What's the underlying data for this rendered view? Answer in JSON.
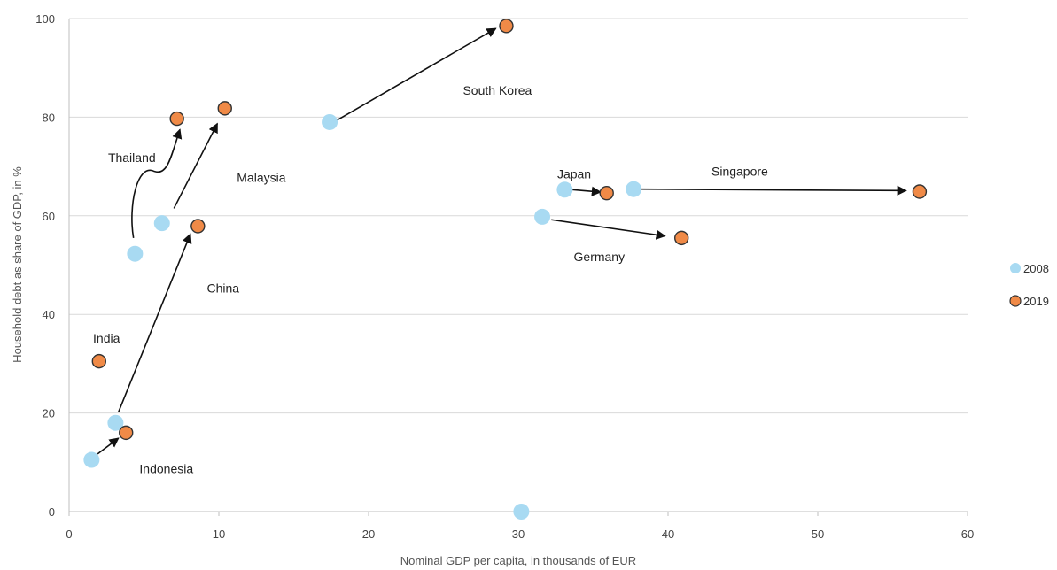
{
  "chart_data": {
    "type": "scatter",
    "xlabel": "Nominal GDP per capita, in thousands of EUR",
    "ylabel": "Household debt as share of GDP, in %",
    "xlim": [
      0,
      60
    ],
    "ylim": [
      0,
      100
    ],
    "x_ticks": [
      0,
      10,
      20,
      30,
      40,
      50,
      60
    ],
    "y_ticks": [
      0,
      20,
      40,
      60,
      80,
      100
    ],
    "grid": "horizontal",
    "legend_position": "right",
    "series": [
      {
        "name": "2008",
        "color": "#a8daf2",
        "points": [
          {
            "x": 1.5,
            "y": 10.5
          },
          {
            "x": 3.1,
            "y": 18
          },
          {
            "x": 4.4,
            "y": 52.3
          },
          {
            "x": 6.2,
            "y": 58.5
          },
          {
            "x": 17.4,
            "y": 79
          },
          {
            "x": 30.2,
            "y": 0
          },
          {
            "x": 31.6,
            "y": 59.8
          },
          {
            "x": 33.1,
            "y": 65.3
          },
          {
            "x": 37.7,
            "y": 65.4
          }
        ]
      },
      {
        "name": "2019",
        "color": "#f08a47",
        "points": [
          {
            "x": 2.0,
            "y": 30.5
          },
          {
            "x": 3.8,
            "y": 16
          },
          {
            "x": 7.2,
            "y": 79.7
          },
          {
            "x": 8.6,
            "y": 57.9
          },
          {
            "x": 10.4,
            "y": 81.8
          },
          {
            "x": 29.2,
            "y": 98.5
          },
          {
            "x": 35.9,
            "y": 64.6
          },
          {
            "x": 40.9,
            "y": 55.5
          },
          {
            "x": 56.8,
            "y": 64.9
          }
        ]
      }
    ],
    "annotations": [
      {
        "text": "South Korea",
        "x": 26.3,
        "y": 85.5
      },
      {
        "text": "Thailand",
        "x": 2.6,
        "y": 71.8
      },
      {
        "text": "Malaysia",
        "x": 11.2,
        "y": 67.8
      },
      {
        "text": "Japan",
        "x": 32.6,
        "y": 68.5
      },
      {
        "text": "Singapore",
        "x": 42.9,
        "y": 69.0
      },
      {
        "text": "Germany",
        "x": 33.7,
        "y": 51.7
      },
      {
        "text": "China",
        "x": 9.2,
        "y": 45.3
      },
      {
        "text": "India",
        "x": 1.6,
        "y": 35.2
      },
      {
        "text": "Indonesia",
        "x": 4.7,
        "y": 8.7
      }
    ],
    "arrows": [
      {
        "from": [
          17.9,
          79.4
        ],
        "to": [
          28.5,
          98.0
        ]
      },
      {
        "from": [
          4.3,
          55.5
        ],
        "curve_via": [
          5.7,
          69.0
        ],
        "to": [
          7.4,
          77.5
        ]
      },
      {
        "from": [
          7.0,
          61.5
        ],
        "to": [
          9.9,
          78.7
        ]
      },
      {
        "from": [
          3.3,
          20.2
        ],
        "to": [
          8.1,
          56.3
        ]
      },
      {
        "from": [
          1.9,
          11.7
        ],
        "to": [
          3.3,
          14.9
        ]
      },
      {
        "from": [
          33.6,
          65.3
        ],
        "to": [
          35.5,
          64.8
        ]
      },
      {
        "from": [
          38.2,
          65.4
        ],
        "to": [
          55.9,
          65.1
        ]
      },
      {
        "from": [
          32.2,
          59.2
        ],
        "to": [
          39.8,
          55.9
        ]
      }
    ]
  }
}
